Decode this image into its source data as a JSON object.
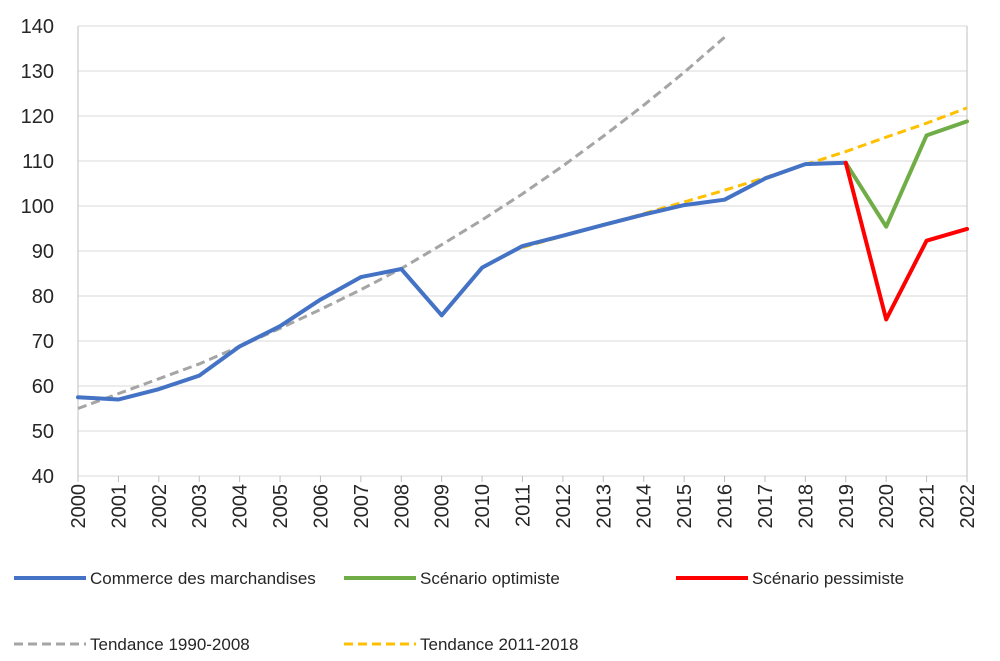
{
  "chart_data": {
    "type": "line",
    "title": "",
    "xlabel": "",
    "ylabel": "",
    "x": [
      "2000",
      "2001",
      "2002",
      "2003",
      "2004",
      "2005",
      "2006",
      "2007",
      "2008",
      "2009",
      "2010",
      "2011",
      "2012",
      "2013",
      "2014",
      "2015",
      "2016",
      "2017",
      "2018",
      "2019",
      "2020",
      "2021",
      "2022"
    ],
    "ylim": [
      40,
      140
    ],
    "yticks": [
      40,
      50,
      60,
      70,
      80,
      90,
      100,
      110,
      120,
      130,
      140
    ],
    "grid": true,
    "legend_position": "bottom",
    "series": [
      {
        "name": "Commerce des marchandises",
        "color": "#4472C4",
        "style": "solid",
        "points": [
          [
            "2000",
            57.5
          ],
          [
            "2001",
            57
          ],
          [
            "2002",
            59.3
          ],
          [
            "2003",
            62.3
          ],
          [
            "2004",
            68.8
          ],
          [
            "2005",
            73.3
          ],
          [
            "2006",
            79.2
          ],
          [
            "2007",
            84.2
          ],
          [
            "2008",
            86
          ],
          [
            "2009",
            75.7
          ],
          [
            "2010",
            86.3
          ],
          [
            "2011",
            91.1
          ],
          [
            "2012",
            93.4
          ],
          [
            "2013",
            95.8
          ],
          [
            "2014",
            98.1
          ],
          [
            "2015",
            100.2
          ],
          [
            "2016",
            101.4
          ],
          [
            "2017",
            106.1
          ],
          [
            "2018",
            109.3
          ],
          [
            "2019",
            109.6
          ]
        ]
      },
      {
        "name": "Scénario optimiste",
        "color": "#70AD47",
        "style": "solid",
        "points": [
          [
            "2019",
            109.6
          ],
          [
            "2020",
            95.4
          ],
          [
            "2021",
            115.7
          ],
          [
            "2022",
            118.8
          ]
        ]
      },
      {
        "name": "Scénario pessimiste",
        "color": "#FF0000",
        "style": "solid",
        "points": [
          [
            "2019",
            109.6
          ],
          [
            "2020",
            74.8
          ],
          [
            "2021",
            92.3
          ],
          [
            "2022",
            94.9
          ]
        ]
      },
      {
        "name": "Tendance 1990-2008",
        "color": "#A5A5A5",
        "style": "dashed",
        "points": [
          [
            "2000",
            55
          ],
          [
            "2001",
            58.3
          ],
          [
            "2002",
            61.6
          ],
          [
            "2003",
            64.9
          ],
          [
            "2004",
            68.8
          ],
          [
            "2005",
            72.8
          ],
          [
            "2006",
            77
          ],
          [
            "2007",
            81.4
          ],
          [
            "2008",
            86.1
          ],
          [
            "2009",
            91.4
          ],
          [
            "2010",
            96.9
          ],
          [
            "2011",
            102.7
          ],
          [
            "2012",
            108.9
          ],
          [
            "2013",
            115.5
          ],
          [
            "2014",
            122.4
          ],
          [
            "2015",
            129.7
          ],
          [
            "2016",
            137.5
          ]
        ]
      },
      {
        "name": "Tendance 2011-2018",
        "color": "#FFC000",
        "style": "dashed",
        "points": [
          [
            "2011",
            90.8
          ],
          [
            "2012",
            93.3
          ],
          [
            "2013",
            95.8
          ],
          [
            "2014",
            98.3
          ],
          [
            "2015",
            100.9
          ],
          [
            "2016",
            103.5
          ],
          [
            "2017",
            106.3
          ],
          [
            "2018",
            109.2
          ],
          [
            "2019",
            112.1
          ],
          [
            "2020",
            115.3
          ],
          [
            "2021",
            118.4
          ],
          [
            "2022",
            121.8
          ]
        ]
      }
    ]
  }
}
